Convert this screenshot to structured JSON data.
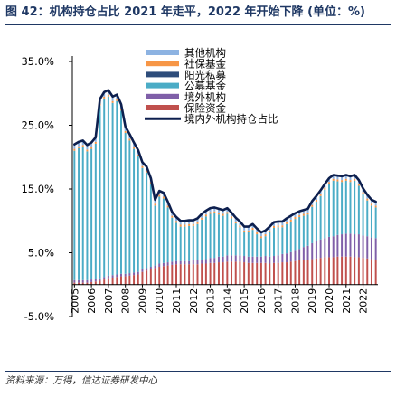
{
  "figure": {
    "title": "图 42：机构持仓占比 2021 年走平，2022 年开始下降 (单位：%)",
    "source": "资料来源：万得，信达证券研发中心"
  },
  "chart_data": {
    "type": "bar",
    "stacked": true,
    "y_ticks": [
      "35.0%",
      "25.0%",
      "15.0%",
      "5.0%",
      "-5.0%"
    ],
    "ylim": [
      -5,
      35
    ],
    "x_tick_labels": [
      "2005",
      "2006",
      "2007",
      "2008",
      "2009",
      "2010",
      "2011",
      "2012",
      "2013",
      "2014",
      "2015",
      "2016",
      "2017",
      "2018",
      "2019",
      "2020",
      "2021",
      "2022"
    ],
    "x_range": [
      2005.0,
      2022.75
    ],
    "x": [
      2005.0,
      2005.25,
      2005.5,
      2005.75,
      2006.0,
      2006.25,
      2006.5,
      2006.75,
      2007.0,
      2007.25,
      2007.5,
      2007.75,
      2008.0,
      2008.25,
      2008.5,
      2008.75,
      2009.0,
      2009.25,
      2009.5,
      2009.75,
      2010.0,
      2010.25,
      2010.5,
      2010.75,
      2011.0,
      2011.25,
      2011.5,
      2011.75,
      2012.0,
      2012.25,
      2012.5,
      2012.75,
      2013.0,
      2013.25,
      2013.5,
      2013.75,
      2014.0,
      2014.25,
      2014.5,
      2014.75,
      2015.0,
      2015.25,
      2015.5,
      2015.75,
      2016.0,
      2016.25,
      2016.5,
      2016.75,
      2017.0,
      2017.25,
      2017.5,
      2017.75,
      2018.0,
      2018.25,
      2018.5,
      2018.75,
      2019.0,
      2019.25,
      2019.5,
      2019.75,
      2020.0,
      2020.25,
      2020.5,
      2020.75,
      2021.0,
      2021.25,
      2021.5,
      2021.75,
      2022.0,
      2022.25,
      2022.5,
      2022.75
    ],
    "legend": [
      "其他机构",
      "社保基金",
      "阳光私募",
      "公募基金",
      "境外机构",
      "保险资金",
      "境内外机构持仓占比"
    ],
    "series": [
      {
        "name": "保险资金",
        "color": "#c0504d",
        "values": [
          0.3,
          0.3,
          0.3,
          0.3,
          0.4,
          0.5,
          0.6,
          0.8,
          1.0,
          1.1,
          1.2,
          1.3,
          1.3,
          1.4,
          1.5,
          1.6,
          2.0,
          2.2,
          2.4,
          2.6,
          2.8,
          2.9,
          3.0,
          3.1,
          3.2,
          3.2,
          3.2,
          3.2,
          3.2,
          3.2,
          3.3,
          3.3,
          3.4,
          3.4,
          3.5,
          3.5,
          3.6,
          3.6,
          3.6,
          3.6,
          3.5,
          3.4,
          3.4,
          3.4,
          3.4,
          3.4,
          3.3,
          3.4,
          3.4,
          3.5,
          3.5,
          3.6,
          3.7,
          3.8,
          3.9,
          3.9,
          4.0,
          4.1,
          4.2,
          4.3,
          4.3,
          4.3,
          4.4,
          4.4,
          4.4,
          4.4,
          4.3,
          4.3,
          4.2,
          4.1,
          4.0,
          3.9
        ]
      },
      {
        "name": "境外机构",
        "color": "#7f5fa8",
        "values": [
          0.4,
          0.4,
          0.4,
          0.4,
          0.4,
          0.4,
          0.4,
          0.4,
          0.4,
          0.4,
          0.4,
          0.4,
          0.4,
          0.4,
          0.4,
          0.4,
          0.4,
          0.4,
          0.4,
          0.4,
          0.5,
          0.5,
          0.5,
          0.5,
          0.5,
          0.5,
          0.5,
          0.5,
          0.6,
          0.6,
          0.6,
          0.7,
          0.8,
          0.8,
          0.9,
          0.9,
          1.0,
          1.0,
          1.0,
          1.0,
          1.0,
          1.0,
          1.0,
          1.0,
          1.0,
          1.1,
          1.1,
          1.1,
          1.2,
          1.3,
          1.4,
          1.5,
          1.6,
          1.8,
          2.0,
          2.2,
          2.5,
          2.7,
          2.9,
          3.0,
          3.2,
          3.3,
          3.4,
          3.5,
          3.6,
          3.6,
          3.6,
          3.6,
          3.5,
          3.5,
          3.4,
          3.4
        ]
      },
      {
        "name": "公募基金",
        "color": "#4bacc6",
        "values": [
          20.3,
          20.7,
          20.9,
          20.2,
          20.5,
          21.2,
          27.1,
          28.0,
          28.1,
          27.0,
          27.2,
          25.6,
          22.1,
          20.8,
          19.4,
          18.1,
          15.9,
          15.0,
          13.0,
          9.4,
          10.5,
          10.1,
          8.6,
          6.9,
          6.0,
          5.4,
          5.4,
          5.5,
          5.4,
          5.7,
          6.3,
          6.7,
          6.9,
          7.0,
          6.6,
          6.4,
          6.5,
          5.8,
          5.0,
          4.4,
          3.7,
          3.8,
          4.2,
          3.5,
          2.9,
          3.1,
          3.8,
          4.4,
          4.4,
          4.2,
          4.6,
          4.8,
          5.0,
          5.0,
          4.9,
          4.9,
          5.7,
          6.2,
          6.8,
          7.6,
          8.3,
          8.7,
          8.4,
          8.2,
          8.3,
          8.1,
          8.4,
          7.6,
          6.5,
          5.6,
          5.0,
          4.8
        ]
      },
      {
        "name": "阳光私募",
        "color": "#2e4d7b",
        "values": [
          0.0,
          0.0,
          0.0,
          0.0,
          0.0,
          0.0,
          0.0,
          0.0,
          0.0,
          0.0,
          0.0,
          0.0,
          0.0,
          0.0,
          0.0,
          0.0,
          0.0,
          0.0,
          0.0,
          0.0,
          0.0,
          0.0,
          0.0,
          0.0,
          0.0,
          0.0,
          0.0,
          0.0,
          0.0,
          0.0,
          0.0,
          0.0,
          0.0,
          0.0,
          0.0,
          0.0,
          0.0,
          0.0,
          0.0,
          0.0,
          0.0,
          0.0,
          0.0,
          0.0,
          0.0,
          0.0,
          0.0,
          0.0,
          0.0,
          0.0,
          0.0,
          0.0,
          0.0,
          0.0,
          0.0,
          0.0,
          0.0,
          0.0,
          0.0,
          0.0,
          0.0,
          0.0,
          0.0,
          0.0,
          0.0,
          0.0,
          0.0,
          0.0,
          0.0,
          0.0,
          0.0,
          0.0
        ]
      },
      {
        "name": "社保基金",
        "color": "#f79646",
        "values": [
          0.3,
          0.3,
          0.3,
          0.3,
          0.3,
          0.3,
          0.3,
          0.3,
          0.3,
          0.3,
          0.3,
          0.3,
          0.3,
          0.3,
          0.3,
          0.3,
          0.3,
          0.3,
          0.3,
          0.3,
          0.3,
          0.3,
          0.3,
          0.3,
          0.3,
          0.3,
          0.3,
          0.3,
          0.3,
          0.3,
          0.3,
          0.3,
          0.3,
          0.3,
          0.3,
          0.3,
          0.3,
          0.3,
          0.3,
          0.3,
          0.3,
          0.3,
          0.3,
          0.3,
          0.3,
          0.3,
          0.3,
          0.3,
          0.3,
          0.3,
          0.3,
          0.3,
          0.3,
          0.3,
          0.3,
          0.3,
          0.3,
          0.3,
          0.3,
          0.3,
          0.3,
          0.3,
          0.3,
          0.3,
          0.3,
          0.3,
          0.3,
          0.3,
          0.3,
          0.3,
          0.3,
          0.3
        ]
      },
      {
        "name": "其他机构",
        "color": "#8db3e2",
        "values": [
          0.7,
          0.7,
          0.7,
          0.7,
          0.7,
          0.7,
          0.7,
          0.7,
          0.7,
          0.7,
          0.7,
          0.7,
          0.7,
          0.7,
          0.7,
          0.7,
          0.6,
          0.6,
          0.6,
          0.6,
          0.6,
          0.6,
          0.6,
          0.6,
          0.6,
          0.6,
          0.6,
          0.6,
          0.6,
          0.6,
          0.6,
          0.6,
          0.6,
          0.6,
          0.6,
          0.6,
          0.6,
          0.6,
          0.6,
          0.6,
          0.6,
          0.6,
          0.6,
          0.6,
          0.6,
          0.6,
          0.6,
          0.6,
          0.6,
          0.6,
          0.6,
          0.6,
          0.6,
          0.6,
          0.6,
          0.6,
          0.6,
          0.6,
          0.6,
          0.6,
          0.6,
          0.6,
          0.6,
          0.6,
          0.6,
          0.6,
          0.6,
          0.6,
          0.6,
          0.6,
          0.6,
          0.6
        ]
      },
      {
        "name": "境内外机构持仓占比",
        "type": "line",
        "color": "#0d1f4e",
        "values": [
          22.0,
          22.4,
          22.6,
          21.9,
          22.3,
          23.1,
          29.1,
          30.2,
          30.5,
          29.5,
          29.8,
          28.3,
          24.8,
          23.6,
          22.3,
          21.1,
          19.2,
          18.5,
          16.7,
          13.3,
          14.7,
          14.4,
          13.0,
          11.4,
          10.6,
          10.0,
          10.0,
          10.1,
          10.1,
          10.4,
          11.1,
          11.6,
          12.0,
          12.1,
          11.9,
          11.7,
          12.0,
          11.3,
          10.5,
          9.9,
          9.1,
          9.1,
          9.5,
          8.8,
          8.2,
          8.5,
          9.1,
          9.8,
          9.9,
          9.9,
          10.4,
          10.8,
          11.2,
          11.5,
          11.7,
          11.9,
          13.1,
          13.9,
          14.8,
          15.8,
          16.7,
          17.2,
          17.1,
          17.0,
          17.2,
          17.0,
          17.2,
          16.4,
          15.1,
          14.1,
          13.3,
          13.0
        ]
      }
    ]
  }
}
